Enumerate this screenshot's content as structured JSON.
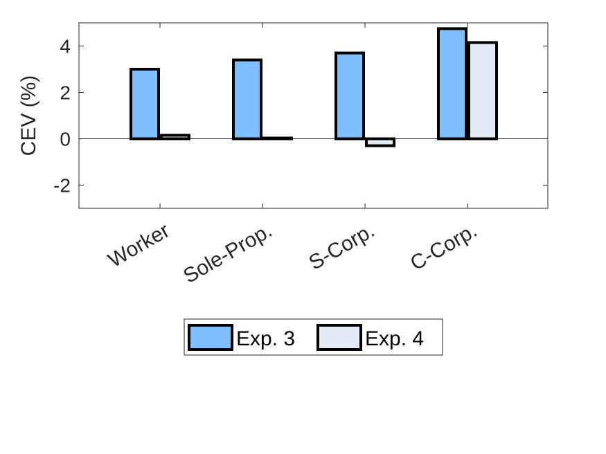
{
  "chart_data": {
    "type": "bar",
    "title": "",
    "xlabel": "",
    "ylabel": "CEV (%)",
    "categories": [
      "Worker",
      "Sole-Prop.",
      "S-Corp.",
      "C-Corp."
    ],
    "series": [
      {
        "name": "Exp. 3",
        "values": [
          3.0,
          3.4,
          3.7,
          4.75
        ],
        "color": "#80BFFF"
      },
      {
        "name": "Exp. 4",
        "values": [
          0.15,
          0.03,
          -0.3,
          4.15
        ],
        "color": "#E3EBF7"
      }
    ],
    "ylim": [
      -3,
      5
    ],
    "yticks": [
      -2,
      0,
      2,
      4
    ],
    "ytick_labels": [
      "-2",
      "0",
      "2",
      "4"
    ],
    "grid": false,
    "zero_line": true,
    "legend_position": "bottom",
    "category_label_rotation": -30
  }
}
